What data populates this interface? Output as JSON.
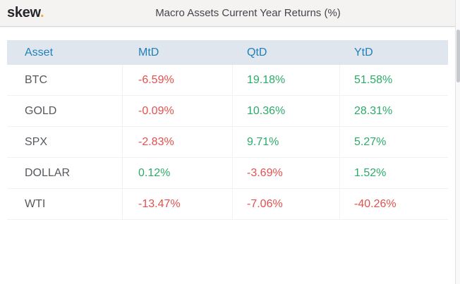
{
  "header": {
    "logo_text": "skew",
    "logo_dot": ".",
    "title": "Macro Assets Current Year Returns (%)"
  },
  "table": {
    "columns": [
      "Asset",
      "MtD",
      "QtD",
      "YtD"
    ],
    "rows": [
      {
        "asset": "BTC",
        "mtd": "-6.59%",
        "qtd": "19.18%",
        "ytd": "51.58%"
      },
      {
        "asset": "GOLD",
        "mtd": "-0.09%",
        "qtd": "10.36%",
        "ytd": "28.31%"
      },
      {
        "asset": "SPX",
        "mtd": "-2.83%",
        "qtd": "9.71%",
        "ytd": "5.27%"
      },
      {
        "asset": "DOLLAR",
        "mtd": "0.12%",
        "qtd": "-3.69%",
        "ytd": "1.52%"
      },
      {
        "asset": "WTI",
        "mtd": "-13.47%",
        "qtd": "-7.06%",
        "ytd": "-40.26%"
      }
    ]
  },
  "colors": {
    "positive": "#2bab68",
    "negative": "#e5504e",
    "header_text_blue": "#2180b9",
    "header_band_bg": "#dfe6ee",
    "logo_dot_orange": "#ecaa3e"
  }
}
